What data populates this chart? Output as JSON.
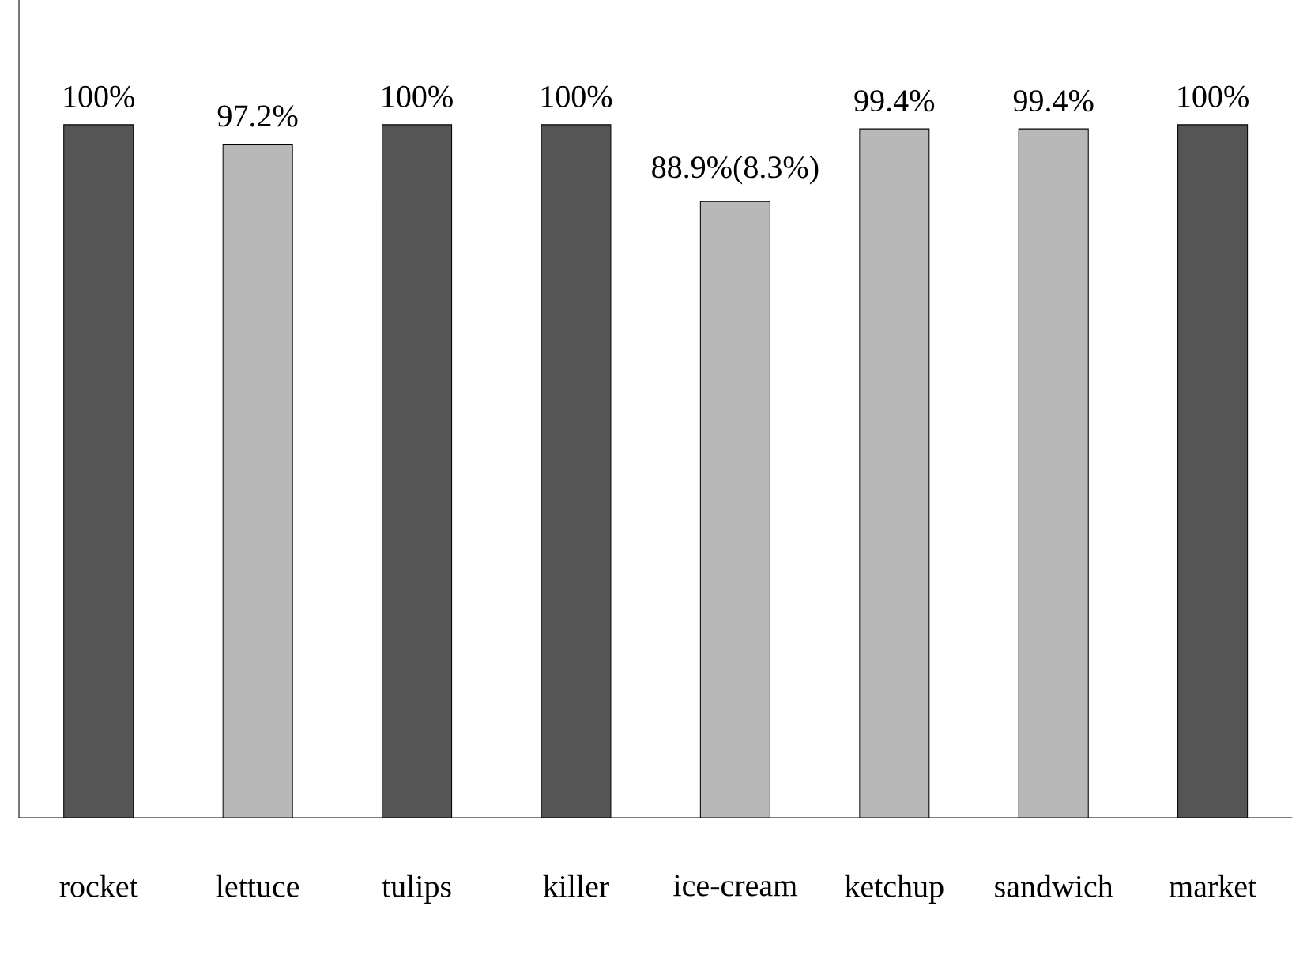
{
  "chart_data": {
    "type": "bar",
    "categories": [
      "rocket",
      "lettuce",
      "tulips",
      "killer",
      "ice-cream",
      "ketchup",
      "sandwich",
      "market"
    ],
    "values": [
      100,
      97.2,
      100,
      100,
      88.9,
      99.4,
      99.4,
      100
    ],
    "colors": [
      "#555555",
      "#b8b8b8",
      "#555555",
      "#555555",
      "#b8b8b8",
      "#b8b8b8",
      "#b8b8b8",
      "#555555"
    ],
    "value_labels": [
      "100%",
      "97.2%",
      "100%",
      "100%",
      "88.9%(8.3%)",
      "99.4%",
      "99.4%",
      "100%"
    ],
    "tick_labels": "x"
  }
}
